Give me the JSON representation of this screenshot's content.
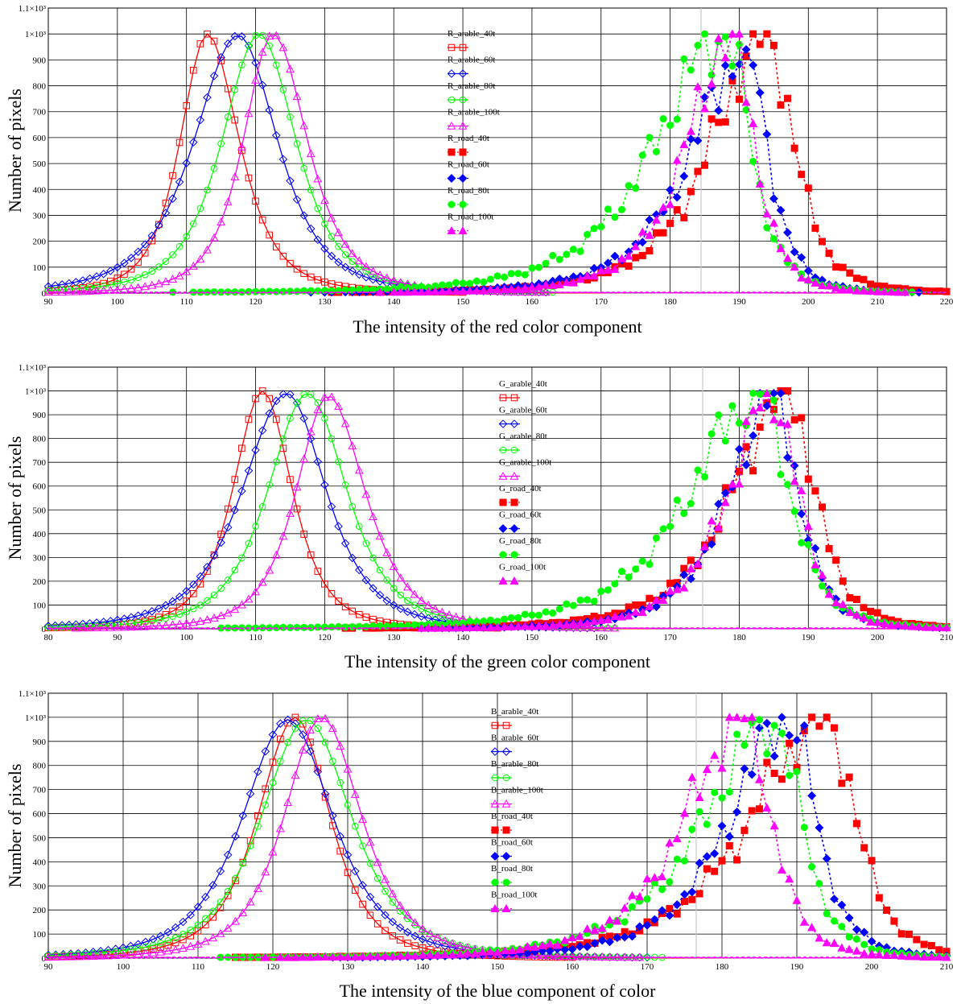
{
  "chart_data": [
    {
      "type": "line",
      "xlabel": "The intensity of the red color component",
      "ylabel": "Number of pixels",
      "xlim": [
        90,
        220
      ],
      "ylim": [
        0,
        1100
      ],
      "xticks": [
        "90",
        "100",
        "110",
        "120",
        "130",
        "140",
        "150",
        "160",
        "170",
        "180",
        "190",
        "200",
        "210",
        "220"
      ],
      "yticks": [
        "0",
        "100",
        "200",
        "300",
        "400",
        "500",
        "600",
        "700",
        "800",
        "900",
        "1×10³",
        "1.1×10³"
      ],
      "grid": true,
      "legend_position": "center",
      "series": [
        {
          "name": "R_arable_40t",
          "color": "#ff0000",
          "marker": "square-open",
          "style": "solid",
          "peak": 113,
          "value": 1000,
          "width_left": 5.5,
          "width_right": 6.5
        },
        {
          "name": "R_arable_60t",
          "color": "#0000ff",
          "marker": "diamond-open",
          "style": "solid",
          "peak": 117.5,
          "value": 995,
          "width_left": 9,
          "width_right": 8
        },
        {
          "name": "R_arable_80t",
          "color": "#00ff00",
          "marker": "circle-open",
          "style": "solid",
          "peak": 120.5,
          "value": 1000,
          "width_left": 7.5,
          "width_right": 7.5
        },
        {
          "name": "R_arable_100t",
          "color": "#ff00ff",
          "marker": "triangle-open",
          "style": "solid",
          "peak": 122.5,
          "value": 1000,
          "width_left": 6,
          "width_right": 7
        },
        {
          "name": "R_road_40t",
          "color": "#ff0000",
          "marker": "square-filled",
          "style": "dotted",
          "peak": 194,
          "value": 1000,
          "width_left": 11,
          "width_right": 5.5
        },
        {
          "name": "R_road_60t",
          "color": "#0000ff",
          "marker": "diamond-filled",
          "style": "dotted",
          "peak": 191,
          "value": 940,
          "width_left": 11,
          "width_right": 4.5
        },
        {
          "name": "R_road_80t",
          "color": "#00ff00",
          "marker": "circle-filled",
          "style": "dotted",
          "peak": 188,
          "value": 1000,
          "width_left": 14,
          "width_right": 5
        },
        {
          "name": "R_road_100t",
          "color": "#ff00ff",
          "marker": "triangle-filled",
          "style": "dotted",
          "peak": 189,
          "value": 1000,
          "width_left": 9,
          "width_right": 4.5
        }
      ]
    },
    {
      "type": "line",
      "xlabel": "The intensity of the green color component",
      "ylabel": "Number of pixels",
      "xlim": [
        80,
        210
      ],
      "ylim": [
        0,
        1100
      ],
      "xticks": [
        "80",
        "90",
        "100",
        "110",
        "120",
        "130",
        "140",
        "150",
        "160",
        "170",
        "180",
        "190",
        "200",
        "210"
      ],
      "yticks": [
        "0",
        "100",
        "200",
        "300",
        "400",
        "500",
        "600",
        "700",
        "800",
        "900",
        "1×10³",
        "1.1×10³"
      ],
      "grid": true,
      "legend_position": "center",
      "series": [
        {
          "name": "G_arable_40t",
          "color": "#ff0000",
          "marker": "square-open",
          "style": "solid",
          "peak": 111,
          "value": 1000,
          "width_left": 6,
          "width_right": 6
        },
        {
          "name": "G_arable_60t",
          "color": "#0000ff",
          "marker": "diamond-open",
          "style": "solid",
          "peak": 114.5,
          "value": 990,
          "width_left": 9,
          "width_right": 8
        },
        {
          "name": "G_arable_80t",
          "color": "#00ff00",
          "marker": "circle-open",
          "style": "solid",
          "peak": 117.5,
          "value": 990,
          "width_left": 8,
          "width_right": 8
        },
        {
          "name": "G_arable_100t",
          "color": "#ff00ff",
          "marker": "triangle-open",
          "style": "solid",
          "peak": 120.5,
          "value": 980,
          "width_left": 6.5,
          "width_right": 7.5
        },
        {
          "name": "G_road_40t",
          "color": "#ff0000",
          "marker": "square-filled",
          "style": "dotted",
          "peak": 187,
          "value": 1000,
          "width_left": 11,
          "width_right": 5.5
        },
        {
          "name": "G_road_60t",
          "color": "#0000ff",
          "marker": "diamond-filled",
          "style": "dotted",
          "peak": 185,
          "value": 990,
          "width_left": 9,
          "width_right": 5
        },
        {
          "name": "G_road_80t",
          "color": "#00ff00",
          "marker": "circle-filled",
          "style": "dotted",
          "peak": 183,
          "value": 990,
          "width_left": 14,
          "width_right": 6
        },
        {
          "name": "G_road_100t",
          "color": "#ff00ff",
          "marker": "triangle-filled",
          "style": "dotted",
          "peak": 185,
          "value": 990,
          "width_left": 9,
          "width_right": 5
        }
      ]
    },
    {
      "type": "line",
      "xlabel": "The intensity of the blue component of color",
      "ylabel": "Number of pixels",
      "xlim": [
        90,
        210
      ],
      "ylim": [
        0,
        1100
      ],
      "xticks": [
        "90",
        "100",
        "110",
        "120",
        "130",
        "140",
        "150",
        "160",
        "170",
        "180",
        "190",
        "200",
        "210"
      ],
      "yticks": [
        "0",
        "100",
        "200",
        "300",
        "400",
        "500",
        "600",
        "700",
        "800",
        "900",
        "1×10³",
        "1.1×10³"
      ],
      "grid": true,
      "legend_position": "center",
      "series": [
        {
          "name": "B_arable_40t",
          "color": "#ff0000",
          "marker": "square-open",
          "style": "solid",
          "peak": 123,
          "value": 1000,
          "width_left": 7,
          "width_right": 6.5
        },
        {
          "name": "B_arable_60t",
          "color": "#0000ff",
          "marker": "diamond-open",
          "style": "solid",
          "peak": 122,
          "value": 990,
          "width_left": 8.5,
          "width_right": 8.5
        },
        {
          "name": "B_arable_80t",
          "color": "#00ff00",
          "marker": "circle-open",
          "style": "solid",
          "peak": 124.5,
          "value": 990,
          "width_left": 8.5,
          "width_right": 8.5
        },
        {
          "name": "B_arable_100t",
          "color": "#ff00ff",
          "marker": "triangle-open",
          "style": "solid",
          "peak": 126.5,
          "value": 1000,
          "width_left": 7,
          "width_right": 7.5
        },
        {
          "name": "B_road_40t",
          "color": "#ff0000",
          "marker": "square-filled",
          "style": "dotted",
          "peak": 194,
          "value": 1000,
          "width_left": 14,
          "width_right": 5.5
        },
        {
          "name": "B_road_60t",
          "color": "#0000ff",
          "marker": "diamond-filled",
          "style": "dotted",
          "peak": 189,
          "value": 1000,
          "width_left": 11,
          "width_right": 5
        },
        {
          "name": "B_road_80t",
          "color": "#00ff00",
          "marker": "circle-filled",
          "style": "dotted",
          "peak": 187,
          "value": 990,
          "width_left": 13,
          "width_right": 5
        },
        {
          "name": "B_road_100t",
          "color": "#ff00ff",
          "marker": "triangle-filled",
          "style": "dotted",
          "peak": 183,
          "value": 1000,
          "width_left": 11,
          "width_right": 5
        }
      ]
    }
  ]
}
